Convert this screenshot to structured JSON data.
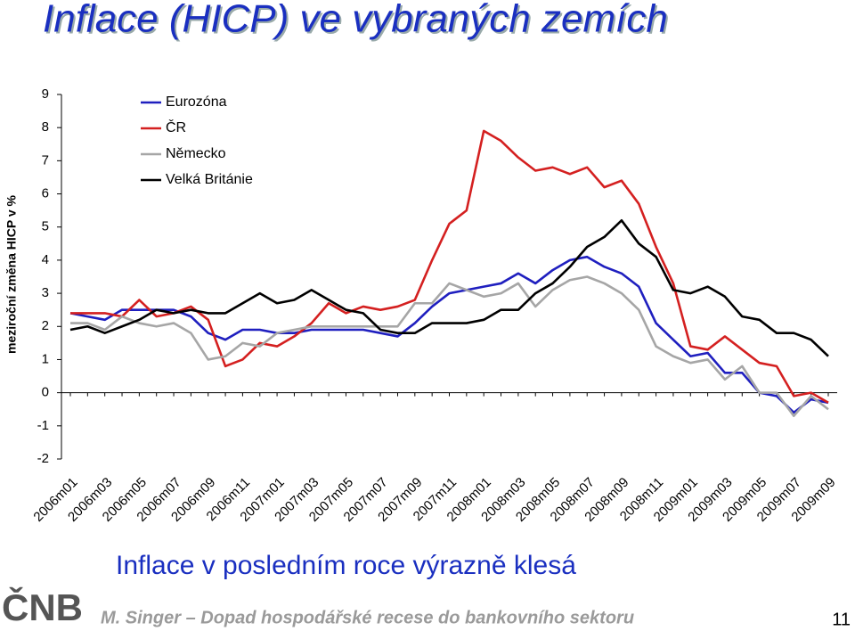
{
  "chart_data": {
    "type": "line",
    "title": "Inflace (HICP) ve vybraných zemích",
    "y_label": "meziroční změna HICP v %",
    "categories": [
      "2006m01",
      null,
      "2006m03",
      null,
      "2006m05",
      null,
      "2006m07",
      null,
      "2006m09",
      null,
      "2006m11",
      null,
      "2007m01",
      null,
      "2007m03",
      null,
      "2007m05",
      null,
      "2007m07",
      null,
      "2007m09",
      null,
      "2007m11",
      null,
      "2008m01",
      null,
      "2008m03",
      null,
      "2008m05",
      null,
      "2008m07",
      null,
      "2008m09",
      null,
      "2008m11",
      null,
      "2009m01",
      null,
      "2009m03",
      null,
      "2009m05",
      null,
      "2009m07",
      null,
      "2009m09"
    ],
    "series": [
      {
        "name": "Eurozóna",
        "color": "#1f1fbf",
        "values": [
          2.4,
          2.3,
          2.2,
          2.5,
          2.5,
          2.5,
          2.5,
          2.3,
          1.8,
          1.6,
          1.9,
          1.9,
          1.8,
          1.8,
          1.9,
          1.9,
          1.9,
          1.9,
          1.8,
          1.7,
          2.1,
          2.6,
          3.0,
          3.1,
          3.2,
          3.3,
          3.6,
          3.3,
          3.7,
          4.0,
          4.1,
          3.8,
          3.6,
          3.2,
          2.1,
          1.6,
          1.1,
          1.2,
          0.6,
          0.6,
          0.0,
          -0.1,
          -0.6,
          -0.2,
          -0.3
        ]
      },
      {
        "name": "ČR",
        "color": "#d42020",
        "values": [
          2.4,
          2.4,
          2.4,
          2.3,
          2.8,
          2.3,
          2.4,
          2.6,
          2.2,
          0.8,
          1.0,
          1.5,
          1.4,
          1.7,
          2.1,
          2.7,
          2.4,
          2.6,
          2.5,
          2.6,
          2.8,
          4.0,
          5.1,
          5.5,
          7.9,
          7.6,
          7.1,
          6.7,
          6.8,
          6.6,
          6.8,
          6.2,
          6.4,
          5.7,
          4.4,
          3.3,
          1.4,
          1.3,
          1.7,
          1.3,
          0.9,
          0.8,
          -0.1,
          0.0,
          -0.3
        ]
      },
      {
        "name": "Německo",
        "color": "#a6a6a6",
        "values": [
          2.1,
          2.1,
          1.9,
          2.3,
          2.1,
          2.0,
          2.1,
          1.8,
          1.0,
          1.1,
          1.5,
          1.4,
          1.8,
          1.9,
          2.0,
          2.0,
          2.0,
          2.0,
          2.0,
          2.0,
          2.7,
          2.7,
          3.3,
          3.1,
          2.9,
          3.0,
          3.3,
          2.6,
          3.1,
          3.4,
          3.5,
          3.3,
          3.0,
          2.5,
          1.4,
          1.1,
          0.9,
          1.0,
          0.4,
          0.8,
          0.0,
          0.0,
          -0.7,
          -0.1,
          -0.5
        ]
      },
      {
        "name": "Velká Británie",
        "color": "#000000",
        "values": [
          1.9,
          2.0,
          1.8,
          2.0,
          2.2,
          2.5,
          2.4,
          2.5,
          2.4,
          2.4,
          2.7,
          3.0,
          2.7,
          2.8,
          3.1,
          2.8,
          2.5,
          2.4,
          1.9,
          1.8,
          1.8,
          2.1,
          2.1,
          2.1,
          2.2,
          2.5,
          2.5,
          3.0,
          3.3,
          3.8,
          4.4,
          4.7,
          5.2,
          4.5,
          4.1,
          3.1,
          3.0,
          3.2,
          2.9,
          2.3,
          2.2,
          1.8,
          1.8,
          1.6,
          1.1
        ]
      }
    ],
    "ylim": [
      -2,
      9
    ],
    "yticks": [
      -2,
      -1,
      0,
      1,
      2,
      3,
      4,
      5,
      6,
      7,
      8,
      9
    ],
    "grid": false,
    "legend": "top-left"
  },
  "slide": {
    "subtitle": "Inflace v posledním roce výrazně klesá",
    "logo": "ČNB",
    "footer": "M. Singer – Dopad hospodářské recese do bankovního sektoru",
    "page": 11
  }
}
